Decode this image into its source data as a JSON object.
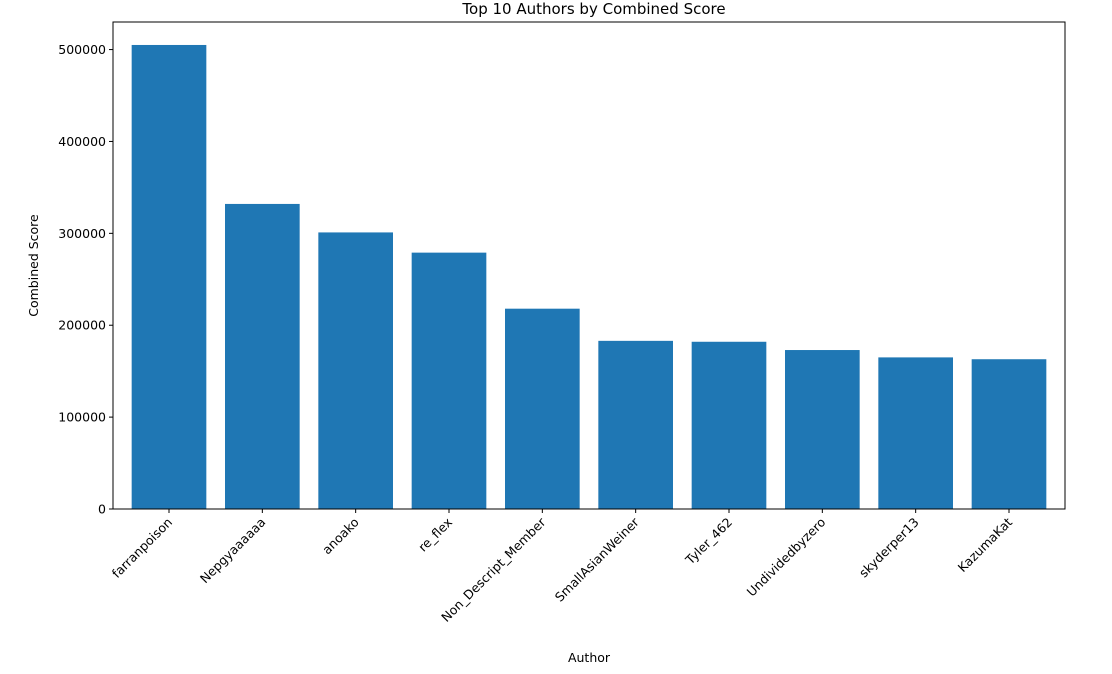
{
  "chart_data": {
    "type": "bar",
    "title": "Top 10 Authors by Combined Score",
    "xlabel": "Author",
    "ylabel": "Combined Score",
    "categories": [
      "farranpoison",
      "Nepgyaaaaaa",
      "anoako",
      "re_flex",
      "Non_Descript_Member",
      "SmallAsianWeiner",
      "Tyler_462",
      "Undividedbyzero",
      "skyderper13",
      "KazumaKat"
    ],
    "values": [
      505000,
      332000,
      301000,
      279000,
      218000,
      183000,
      182000,
      173000,
      165000,
      163000
    ],
    "ylim": [
      0,
      530000
    ],
    "yticks": [
      0,
      100000,
      200000,
      300000,
      400000,
      500000
    ],
    "grid": false,
    "bar_color": "#1f77b4"
  }
}
